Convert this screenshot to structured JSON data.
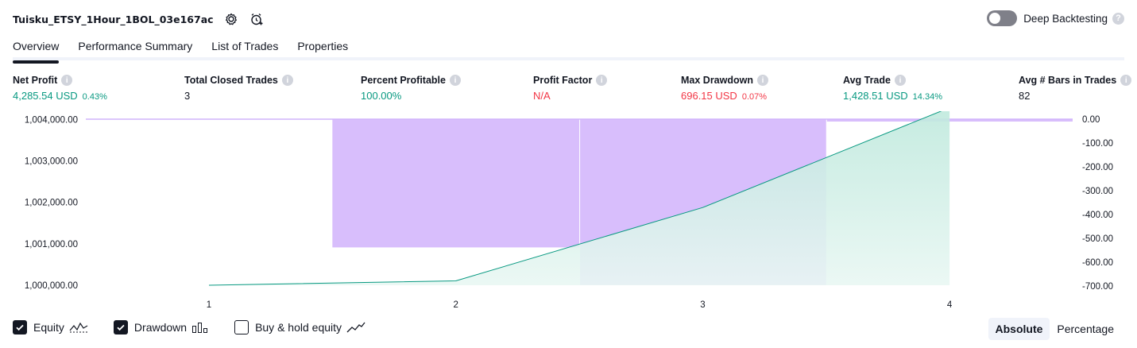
{
  "header": {
    "strategy_name": "Tuisku_ETSY_1Hour_1BOL_03e167ac",
    "deep_backtesting_label": "Deep Backtesting",
    "deep_backtesting_enabled": false
  },
  "tabs": [
    {
      "label": "Overview",
      "active": true
    },
    {
      "label": "Performance Summary",
      "active": false
    },
    {
      "label": "List of Trades",
      "active": false
    },
    {
      "label": "Properties",
      "active": false
    }
  ],
  "metrics": [
    {
      "label": "Net Profit",
      "value": "4,285.54 USD",
      "pct": "0.43%",
      "color": "#089981"
    },
    {
      "label": "Total Closed Trades",
      "value": "3",
      "pct": "",
      "color": "#131722"
    },
    {
      "label": "Percent Profitable",
      "value": "100.00%",
      "pct": "",
      "color": "#089981"
    },
    {
      "label": "Profit Factor",
      "value": "N/A",
      "pct": "",
      "color": "#f23645"
    },
    {
      "label": "Max Drawdown",
      "value": "696.15 USD",
      "pct": "0.07%",
      "color": "#f23645"
    },
    {
      "label": "Avg Trade",
      "value": "1,428.51 USD",
      "pct": "14.34%",
      "color": "#089981"
    },
    {
      "label": "Avg # Bars in Trades",
      "value": "82",
      "pct": "",
      "color": "#131722"
    }
  ],
  "chart_data": {
    "type": "area",
    "x_categories": [
      "1",
      "2",
      "3",
      "4"
    ],
    "y_left_ticks": [
      "1,004,000.00",
      "1,003,000.00",
      "1,002,000.00",
      "1,001,000.00",
      "1,000,000.00"
    ],
    "y_left_range": [
      999980,
      1004200
    ],
    "y_right_ticks": [
      "0.00",
      "-100.00",
      "-200.00",
      "-300.00",
      "-400.00",
      "-500.00",
      "-600.00",
      "-700.00"
    ],
    "y_right_range": [
      -700,
      0
    ],
    "series": [
      {
        "name": "Equity",
        "color": "#089981",
        "values": [
          1000000,
          1000105,
          1001875,
          1004285.54
        ]
      },
      {
        "name": "Drawdown",
        "color": "#d1b3fb",
        "bars": [
          {
            "from": 1.5,
            "to": 2.5,
            "value": -538
          },
          {
            "from": 2.5,
            "to": 3.5,
            "value": -696.15
          },
          {
            "from": 3.5,
            "to": 4.5,
            "value": 0
          }
        ]
      }
    ]
  },
  "footer": {
    "equity_label": "Equity",
    "equity_checked": true,
    "drawdown_label": "Drawdown",
    "drawdown_checked": true,
    "buyhold_label": "Buy & hold equity",
    "buyhold_checked": false,
    "absolute_label": "Absolute",
    "percentage_label": "Percentage",
    "mode": "Absolute"
  },
  "colors": {
    "profit": "#089981",
    "loss": "#f23645",
    "drawdown_fill": "#d1b3fb",
    "equity_fill": "#cdeee6"
  }
}
